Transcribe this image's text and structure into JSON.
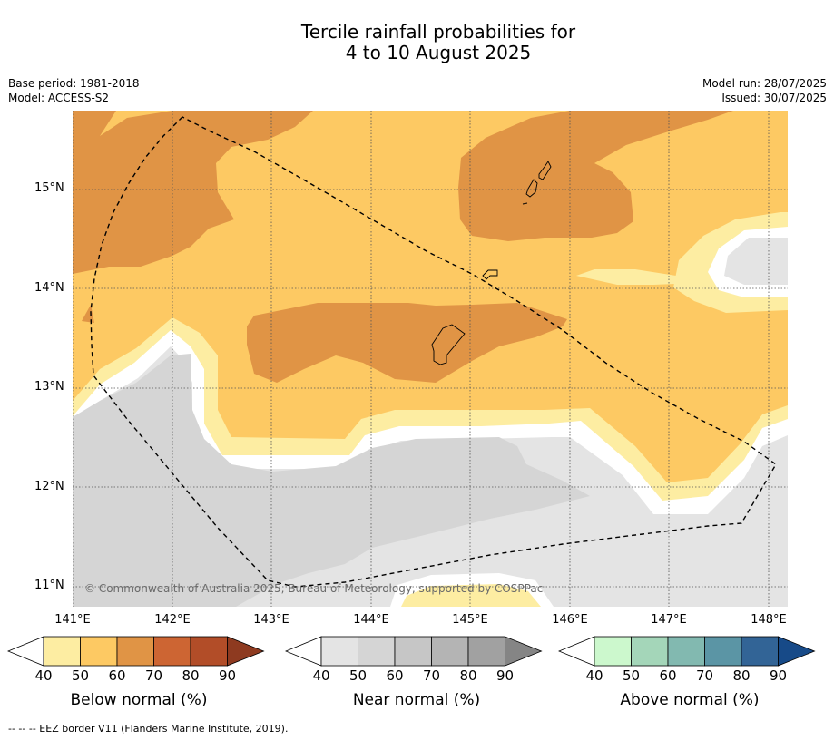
{
  "title_line1": "Tercile rainfall probabilities for",
  "title_line2": "4 to 10 August 2025",
  "base_period": "Base period: 1981-2018",
  "model": "Model: ACCESS-S2",
  "model_run": "Model run: 28/07/2025",
  "issued": "Issued: 30/07/2025",
  "copyright": "© Commonwealth of Australia 2025, Bureau of Meteorology, supported by COSPPac",
  "footer": "--  --  -- EEZ border V11 (Flanders Marine Institute, 2019).",
  "lat_labels": [
    "15°N",
    "14°N",
    "13°N",
    "12°N",
    "11°N"
  ],
  "lon_labels": [
    "141°E",
    "142°E",
    "143°E",
    "144°E",
    "145°E",
    "146°E",
    "147°E",
    "148°E"
  ],
  "colorbars": [
    {
      "label": "Below normal (%)",
      "ticks": [
        "40",
        "50",
        "60",
        "70",
        "80",
        "90"
      ],
      "colors": [
        "#fdeda2",
        "#fdc963",
        "#e09445",
        "#cd6533",
        "#b24d28",
        "#8e3a20"
      ]
    },
    {
      "label": "Near normal (%)",
      "ticks": [
        "40",
        "50",
        "60",
        "70",
        "80",
        "90"
      ],
      "colors": [
        "#e4e4e4",
        "#d5d5d5",
        "#c6c6c6",
        "#b4b4b4",
        "#a1a1a1",
        "#858585"
      ]
    },
    {
      "label": "Above normal (%)",
      "ticks": [
        "40",
        "50",
        "60",
        "70",
        "80",
        "90"
      ],
      "colors": [
        "#ccf8cd",
        "#a4d6b9",
        "#82b9b0",
        "#5b95a5",
        "#326496",
        "#174a88"
      ]
    }
  ],
  "map_colors": {
    "below_50_60": "#fdc963",
    "below_60_70": "#e09445",
    "below_40_50": "#fdeda2",
    "near_40_50": "#e4e4e4",
    "near_50_60": "#d5d5d5"
  }
}
